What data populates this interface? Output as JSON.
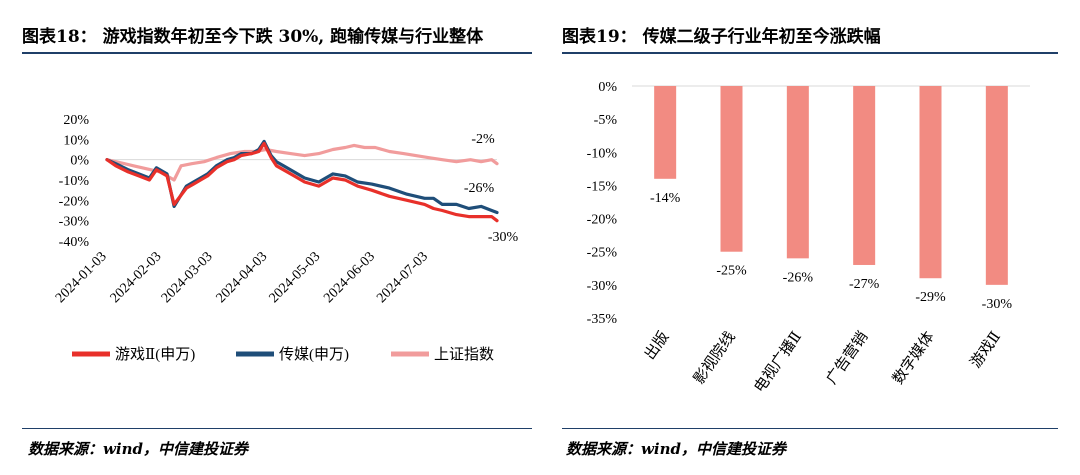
{
  "left_panel": {
    "title": "图表18： 游戏指数年初至今下跌 30%, 跑输传媒与行业整体",
    "source": "数据来源：wind，中信建投证券"
  },
  "right_panel": {
    "title": "图表19： 传媒二级子行业年初至今涨跌幅",
    "source": "数据来源：wind，中信建投证券"
  },
  "chart_data": [
    {
      "type": "line",
      "ylim": [
        -40,
        20
      ],
      "yticks": [
        20,
        10,
        0,
        -10,
        -20,
        -30,
        -40
      ],
      "ytick_labels": [
        "20%",
        "10%",
        "0%",
        "-10%",
        "-20%",
        "-30%",
        "-40%"
      ],
      "x_labels": [
        "2024-01-03",
        "2024-02-03",
        "2024-03-03",
        "2024-04-03",
        "2024-05-03",
        "2024-06-03",
        "2024-07-03"
      ],
      "x_range": [
        0,
        221
      ],
      "x_tick_positions": [
        0,
        31,
        60,
        91,
        121,
        152,
        182
      ],
      "series": [
        {
          "name": "游戏Ⅱ(申万)",
          "color": "#e8302a",
          "x": [
            0,
            5,
            12,
            18,
            24,
            28,
            34,
            38,
            45,
            49,
            53,
            57,
            62,
            68,
            72,
            76,
            82,
            86,
            89,
            93,
            96,
            100,
            106,
            112,
            120,
            128,
            135,
            142,
            150,
            160,
            170,
            180,
            185,
            190,
            198,
            205,
            212,
            218,
            221
          ],
          "values": [
            0,
            -3,
            -6,
            -8,
            -10,
            -5,
            -8,
            -22,
            -14,
            -12,
            -10,
            -8,
            -4,
            -1,
            0,
            2,
            3,
            4,
            8,
            1,
            -3,
            -5,
            -8,
            -11,
            -13,
            -9,
            -10,
            -13,
            -15,
            -18,
            -20,
            -22,
            -24,
            -25,
            -27,
            -28,
            -28,
            -28,
            -30
          ],
          "end_label": "-30%"
        },
        {
          "name": "传媒(申万)",
          "color": "#1f4e79",
          "x": [
            0,
            5,
            12,
            18,
            24,
            28,
            34,
            38,
            45,
            49,
            53,
            57,
            62,
            68,
            72,
            76,
            82,
            86,
            89,
            93,
            96,
            100,
            106,
            112,
            120,
            128,
            135,
            142,
            150,
            160,
            170,
            180,
            185,
            190,
            198,
            205,
            212,
            218,
            221
          ],
          "values": [
            0,
            -2,
            -5,
            -7,
            -9,
            -4,
            -7,
            -23,
            -13,
            -11,
            -9,
            -7,
            -3,
            0,
            1,
            3,
            3,
            5,
            9,
            2,
            -1,
            -3,
            -6,
            -9,
            -11,
            -7,
            -8,
            -11,
            -12,
            -14,
            -17,
            -19,
            -19,
            -22,
            -22,
            -24,
            -23,
            -25,
            -26
          ],
          "end_label": "-26%"
        },
        {
          "name": "上证指数",
          "color": "#f19c9c",
          "x": [
            0,
            5,
            10,
            15,
            20,
            25,
            30,
            34,
            38,
            42,
            48,
            55,
            62,
            70,
            78,
            84,
            90,
            96,
            104,
            112,
            120,
            128,
            135,
            140,
            146,
            152,
            160,
            168,
            175,
            182,
            190,
            198,
            206,
            212,
            218,
            221
          ],
          "values": [
            0,
            -1,
            -2,
            -3,
            -4,
            -5,
            -6,
            -8,
            -10,
            -3,
            -2,
            -1,
            1,
            3,
            4,
            4,
            5,
            4,
            3,
            2,
            3,
            5,
            6,
            7,
            6,
            6,
            4,
            3,
            2,
            1,
            0,
            -1,
            0,
            -1,
            0,
            -2
          ],
          "end_label": "-2%"
        }
      ]
    },
    {
      "type": "bar",
      "categories": [
        "出版",
        "影视院线",
        "电视广播Ⅱ",
        "广告营销",
        "数字媒体",
        "游戏Ⅱ"
      ],
      "values": [
        -14,
        -25,
        -26,
        -27,
        -29,
        -30
      ],
      "data_labels": [
        "-14%",
        "-25%",
        "-26%",
        "-27%",
        "-29%",
        "-30%"
      ],
      "bar_color": "#f28b82",
      "ylim": [
        -35,
        0
      ],
      "yticks": [
        0,
        -5,
        -10,
        -15,
        -20,
        -25,
        -30,
        -35
      ],
      "ytick_labels": [
        "0%",
        "-5%",
        "-10%",
        "-15%",
        "-20%",
        "-25%",
        "-30%",
        "-35%"
      ]
    }
  ]
}
